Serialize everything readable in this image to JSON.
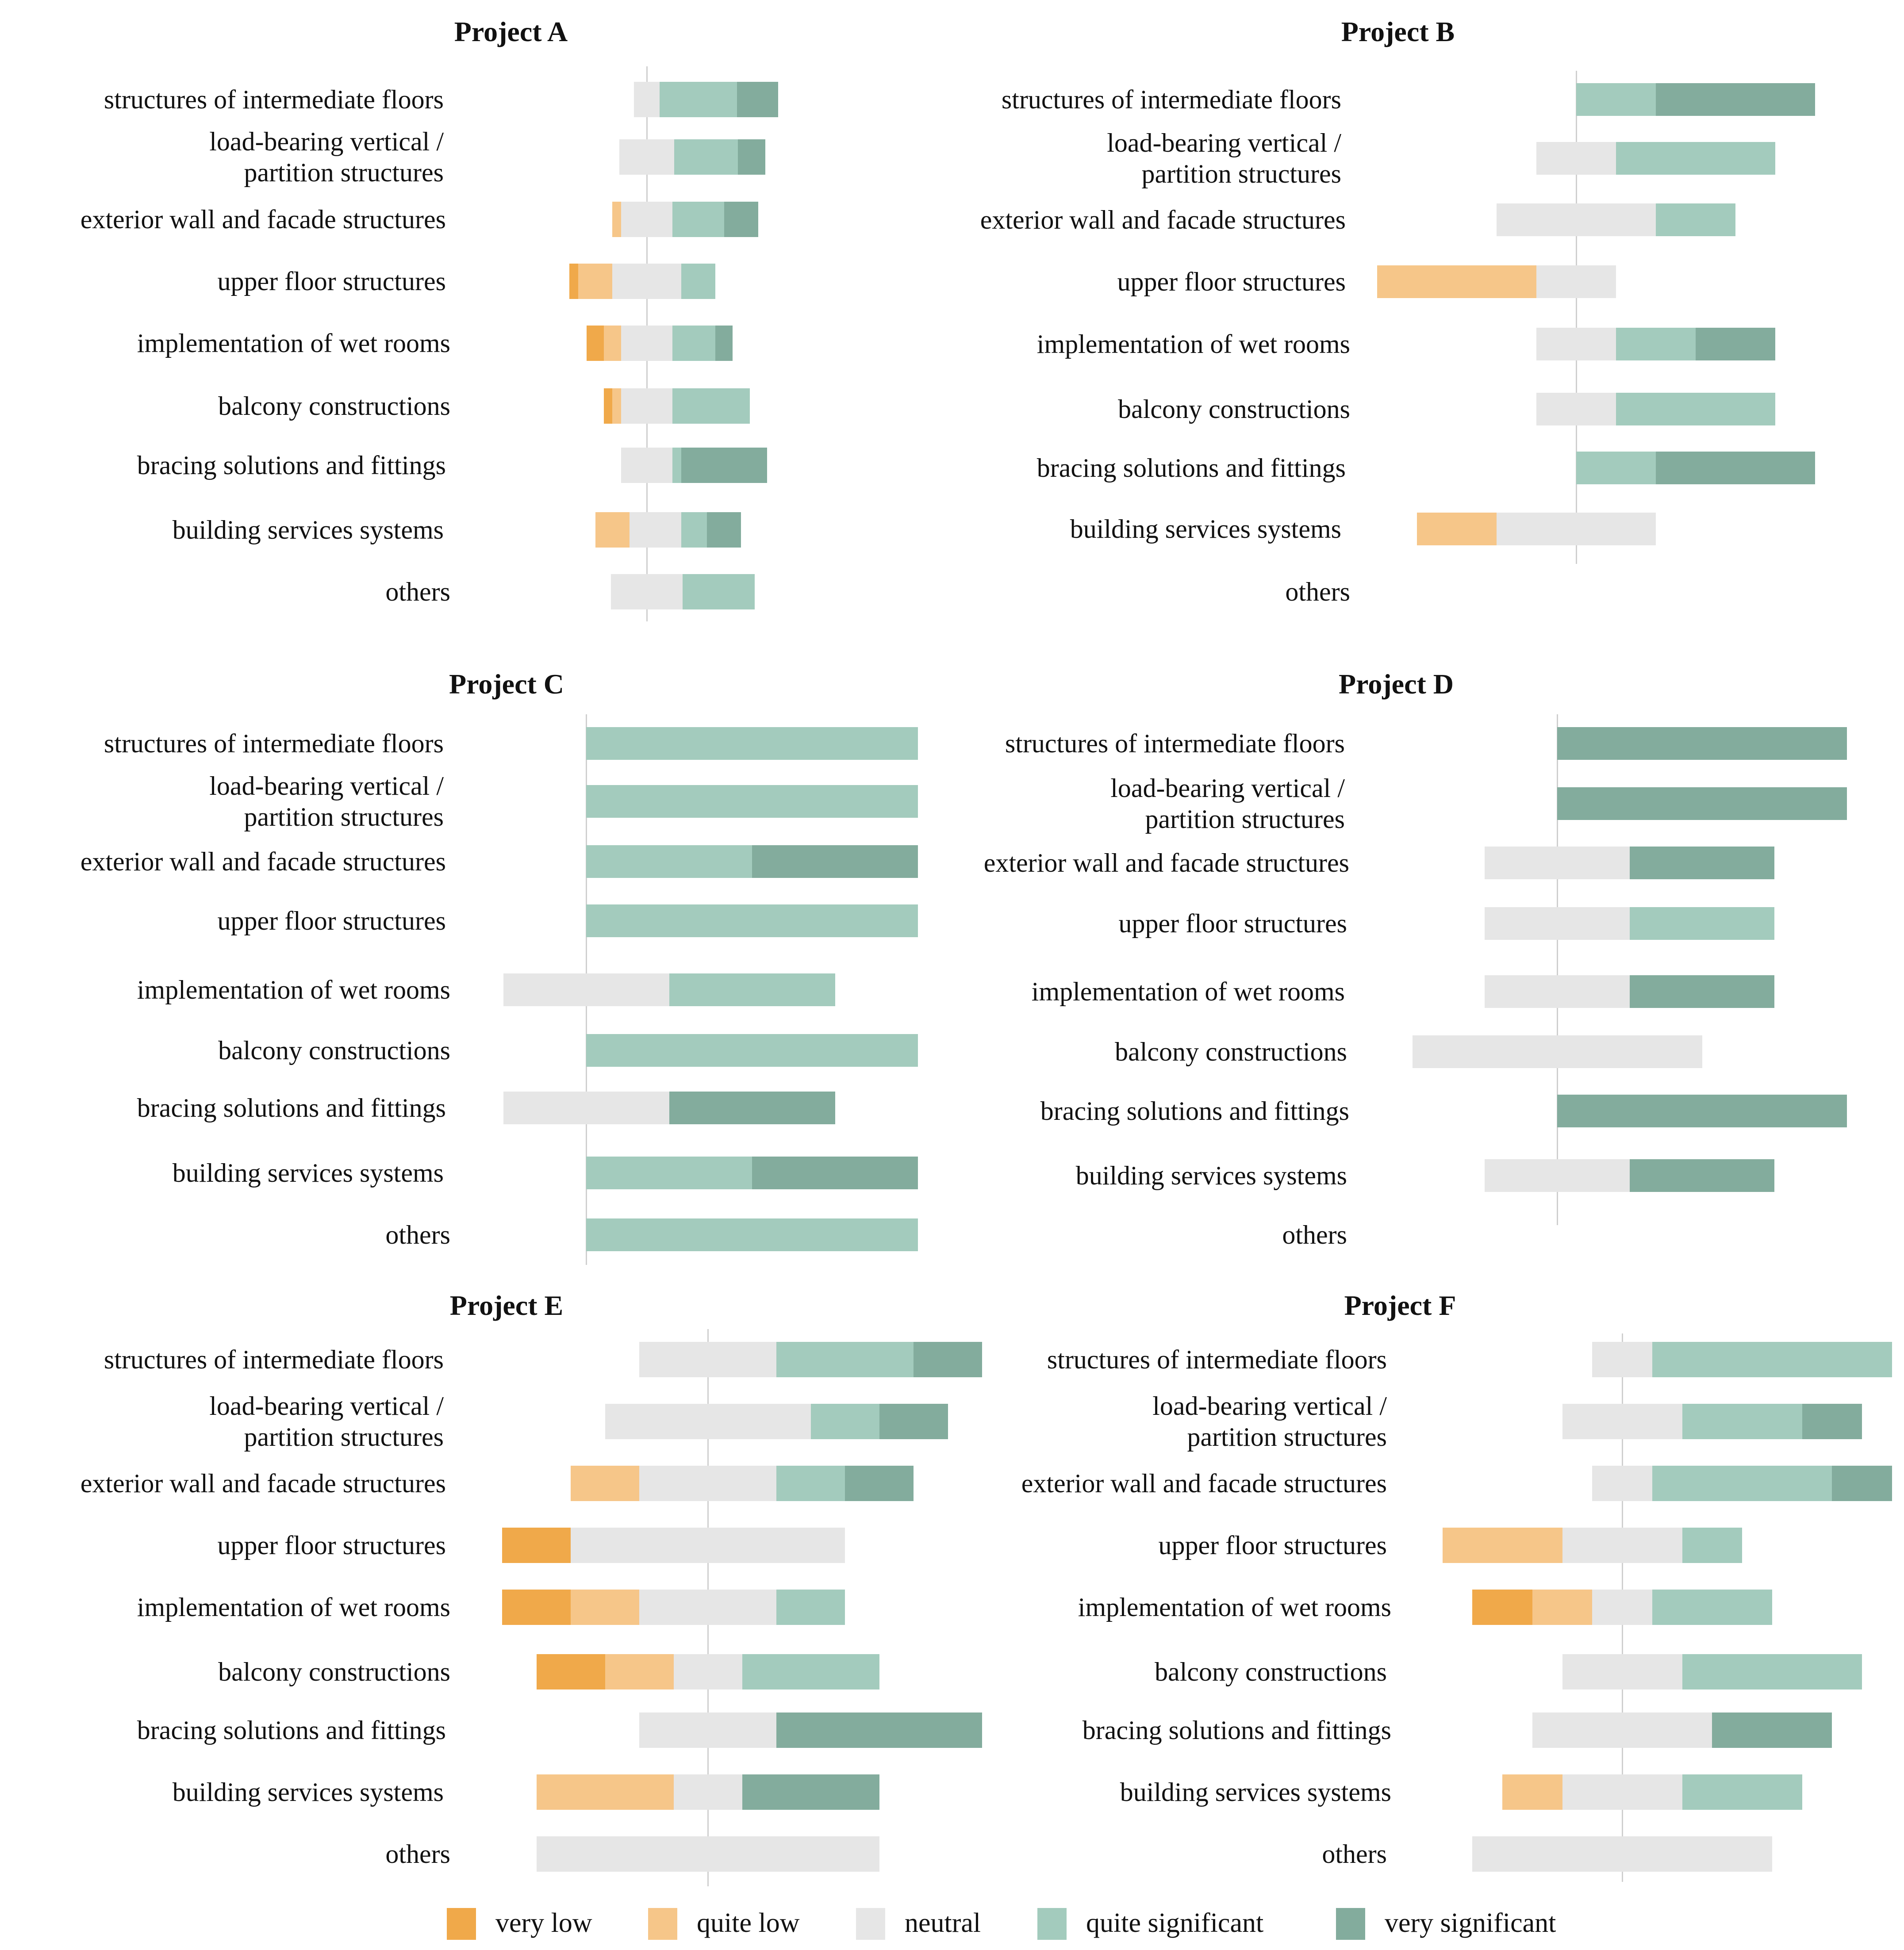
{
  "colors": {
    "very low": "#F0A94A",
    "quite low": "#F6C689",
    "neutral": "#E6E6E6",
    "quite significant": "#A3CBBD",
    "very significant": "#83AC9D",
    "axis": "#CFCFCF"
  },
  "legend": {
    "items": [
      {
        "key": "very low",
        "label": "very low"
      },
      {
        "key": "quite low",
        "label": "quite low"
      },
      {
        "key": "neutral",
        "label": "neutral"
      },
      {
        "key": "quite significant",
        "label": "quite significant"
      },
      {
        "key": "very significant",
        "label": "very significant"
      }
    ]
  },
  "chart_data": [
    {
      "type": "bar",
      "subtype": "diverging-stacked-horizontal",
      "title": "Project A",
      "categories": [
        "structures of intermediate floors",
        "load-bearing vertical / partition structures",
        "exterior wall and facade structures",
        "upper floor structures",
        "implementation of wet rooms",
        "balcony constructions",
        "bracing solutions and fittings",
        "building services systems",
        "others"
      ],
      "segment_order": [
        "very low",
        "quite low",
        "neutral",
        "quite significant",
        "very significant"
      ],
      "series": [
        {
          "name": "very low",
          "values": [
            0,
            0,
            0,
            5,
            10,
            5,
            0,
            0,
            0
          ]
        },
        {
          "name": "quite low",
          "values": [
            0,
            0,
            5,
            20,
            10,
            5,
            0,
            20,
            0
          ]
        },
        {
          "name": "neutral",
          "values": [
            15,
            32,
            30,
            40,
            30,
            30,
            30,
            30,
            42
          ]
        },
        {
          "name": "quite significant",
          "values": [
            45,
            37,
            30,
            20,
            25,
            45,
            5,
            15,
            42
          ]
        },
        {
          "name": "very significant",
          "values": [
            24,
            16,
            20,
            0,
            10,
            0,
            50,
            20,
            0
          ]
        }
      ],
      "offsets": [
        -7.5,
        -16,
        -20,
        -45,
        -35,
        -25,
        -15,
        -30,
        -21
      ]
    },
    {
      "type": "bar",
      "subtype": "diverging-stacked-horizontal",
      "title": "Project B",
      "categories": [
        "structures of intermediate floors",
        "load-bearing vertical / partition structures",
        "exterior wall and facade structures",
        "upper floor structures",
        "implementation of wet rooms",
        "balcony constructions",
        "bracing solutions and fittings",
        "building services systems",
        "others"
      ],
      "segment_order": [
        "very low",
        "quite low",
        "neutral",
        "quite significant",
        "very significant"
      ],
      "series": [
        {
          "name": "very low",
          "values": [
            0,
            0,
            0,
            0,
            0,
            0,
            0,
            0,
            0
          ]
        },
        {
          "name": "quite low",
          "values": [
            0,
            0,
            0,
            40,
            0,
            0,
            0,
            20,
            0
          ]
        },
        {
          "name": "neutral",
          "values": [
            0,
            20,
            40,
            20,
            20,
            20,
            0,
            40,
            0
          ]
        },
        {
          "name": "quite significant",
          "values": [
            20,
            40,
            20,
            0,
            20,
            40,
            20,
            0,
            0
          ]
        },
        {
          "name": "very significant",
          "values": [
            40,
            0,
            0,
            0,
            20,
            0,
            40,
            0,
            0
          ]
        }
      ],
      "offsets": [
        0,
        -10,
        -20,
        -50,
        -10,
        -10,
        0,
        -40,
        0
      ]
    },
    {
      "type": "bar",
      "subtype": "diverging-stacked-horizontal",
      "title": "Project C",
      "categories": [
        "structures of intermediate floors",
        "load-bearing vertical / partition structures",
        "exterior wall and facade structures",
        "upper floor structures",
        "implementation of wet rooms",
        "balcony constructions",
        "bracing solutions and fittings",
        "building services systems",
        "others"
      ],
      "segment_order": [
        "very low",
        "quite low",
        "neutral",
        "quite significant",
        "very significant"
      ],
      "series": [
        {
          "name": "very low",
          "values": [
            0,
            0,
            0,
            0,
            0,
            0,
            0,
            0,
            0
          ]
        },
        {
          "name": "quite low",
          "values": [
            0,
            0,
            0,
            0,
            0,
            0,
            0,
            0,
            0
          ]
        },
        {
          "name": "neutral",
          "values": [
            0,
            0,
            0,
            0,
            50,
            0,
            50,
            0,
            0
          ]
        },
        {
          "name": "quite significant",
          "values": [
            100,
            100,
            50,
            100,
            50,
            100,
            0,
            50,
            100
          ]
        },
        {
          "name": "very significant",
          "values": [
            0,
            0,
            50,
            0,
            0,
            0,
            50,
            50,
            0
          ]
        }
      ],
      "offsets": [
        0,
        0,
        0,
        0,
        -25,
        0,
        -25,
        0,
        0
      ]
    },
    {
      "type": "bar",
      "subtype": "diverging-stacked-horizontal",
      "title": "Project D",
      "categories": [
        "structures of intermediate floors",
        "load-bearing vertical / partition structures",
        "exterior wall and facade structures",
        "upper floor structures",
        "implementation of wet rooms",
        "balcony constructions",
        "bracing solutions and fittings",
        "building services systems",
        "others"
      ],
      "segment_order": [
        "very low",
        "quite low",
        "neutral",
        "quite significant",
        "very significant"
      ],
      "series": [
        {
          "name": "very low",
          "values": [
            0,
            0,
            0,
            0,
            0,
            0,
            0,
            0,
            0
          ]
        },
        {
          "name": "quite low",
          "values": [
            0,
            0,
            0,
            0,
            0,
            0,
            0,
            0,
            0
          ]
        },
        {
          "name": "neutral",
          "values": [
            0,
            0,
            50,
            50,
            50,
            100,
            0,
            50,
            0
          ]
        },
        {
          "name": "quite significant",
          "values": [
            0,
            0,
            0,
            50,
            0,
            0,
            0,
            0,
            0
          ]
        },
        {
          "name": "very significant",
          "values": [
            100,
            100,
            50,
            0,
            50,
            0,
            100,
            50,
            0
          ]
        }
      ],
      "offsets": [
        0,
        0,
        -25,
        -25,
        -25,
        -50,
        0,
        -25,
        0
      ]
    },
    {
      "type": "bar",
      "subtype": "diverging-stacked-horizontal",
      "title": "Project E",
      "categories": [
        "structures of intermediate floors",
        "load-bearing vertical / partition structures",
        "exterior wall and facade structures",
        "upper floor structures",
        "implementation of wet rooms",
        "balcony constructions",
        "bracing solutions and fittings",
        "building services systems",
        "others"
      ],
      "segment_order": [
        "very low",
        "quite low",
        "neutral",
        "quite significant",
        "very significant"
      ],
      "series": [
        {
          "name": "very low",
          "values": [
            0,
            0,
            0,
            20,
            20,
            20,
            0,
            0,
            0
          ]
        },
        {
          "name": "quite low",
          "values": [
            0,
            0,
            20,
            0,
            20,
            20,
            0,
            40,
            0
          ]
        },
        {
          "name": "neutral",
          "values": [
            40,
            60,
            40,
            80,
            40,
            20,
            40,
            20,
            100
          ]
        },
        {
          "name": "quite significant",
          "values": [
            40,
            20,
            20,
            0,
            20,
            40,
            0,
            0,
            0
          ]
        },
        {
          "name": "very significant",
          "values": [
            20,
            20,
            20,
            0,
            0,
            0,
            60,
            40,
            0
          ]
        }
      ],
      "offsets": [
        -20,
        -30,
        -40,
        -60,
        -60,
        -50,
        -20,
        -50,
        -50
      ]
    },
    {
      "type": "bar",
      "subtype": "diverging-stacked-horizontal",
      "title": "Project F",
      "categories": [
        "structures of intermediate floors",
        "load-bearing vertical / partition structures",
        "exterior wall and facade structures",
        "upper floor structures",
        "implementation of wet rooms",
        "balcony constructions",
        "bracing solutions and fittings",
        "building services systems",
        "others"
      ],
      "segment_order": [
        "very low",
        "quite low",
        "neutral",
        "quite significant",
        "very significant"
      ],
      "series": [
        {
          "name": "very low",
          "values": [
            0,
            0,
            0,
            0,
            10,
            0,
            0,
            0,
            0
          ]
        },
        {
          "name": "quite low",
          "values": [
            0,
            0,
            0,
            20,
            10,
            0,
            0,
            10,
            0
          ]
        },
        {
          "name": "neutral",
          "values": [
            10,
            20,
            10,
            20,
            10,
            20,
            30,
            20,
            50
          ]
        },
        {
          "name": "quite significant",
          "values": [
            40,
            20,
            30,
            10,
            20,
            30,
            0,
            20,
            0
          ]
        },
        {
          "name": "very significant",
          "values": [
            0,
            10,
            10,
            0,
            0,
            0,
            20,
            0,
            0
          ]
        }
      ],
      "offsets": [
        -5,
        -10,
        -5,
        -30,
        -25,
        -10,
        -15,
        -20,
        -25
      ]
    }
  ]
}
